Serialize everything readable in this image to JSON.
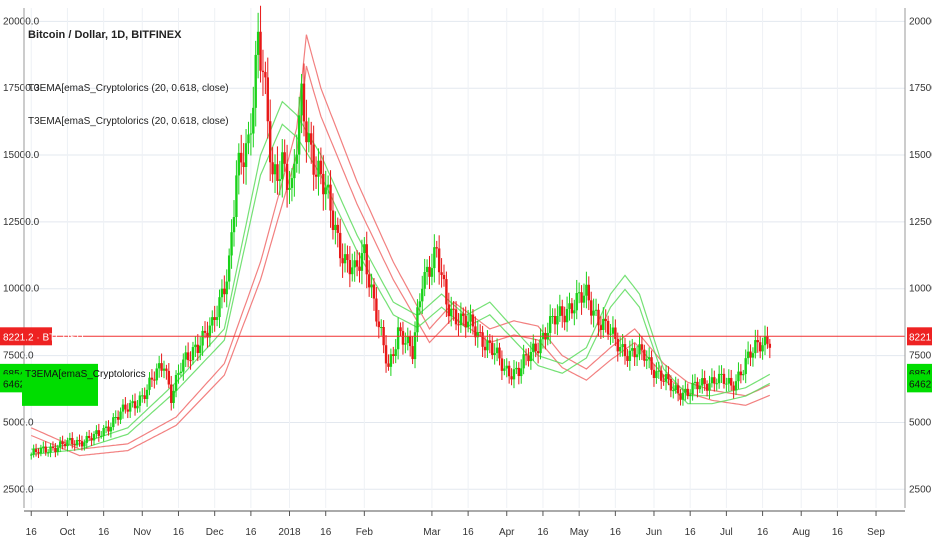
{
  "chart_data": {
    "type": "line",
    "title": "Bitcoin / Dollar, 1D, BITFINEX",
    "indicators": [
      {
        "name": "T3EMA[emaS_Cryptolorics (20, 0.618, close)",
        "color": "#22cc22"
      },
      {
        "name": "T3EMA[emaS_Cryptolorics (20, 0.618, close)",
        "color": "#ee3333"
      }
    ],
    "ylim": [
      1800,
      20500
    ],
    "y_ticks": [
      2500,
      5000,
      7500,
      10000,
      12500,
      15000,
      17500,
      20000
    ],
    "y_tick_labels": [
      "2500.0",
      "5000.0",
      "7500.0",
      "10000.0",
      "12500.0",
      "15000.0",
      "17500.0",
      "20000.0"
    ],
    "x_ticks": [
      "16",
      "Oct",
      "16",
      "Nov",
      "16",
      "Dec",
      "16",
      "2018",
      "16",
      "Feb",
      "Mar",
      "16",
      "Apr",
      "16",
      "May",
      "16",
      "Jun",
      "16",
      "Jul",
      "16",
      "Aug",
      "16",
      "Sep"
    ],
    "x_tick_days": [
      0,
      15,
      30,
      46,
      61,
      76,
      91,
      107,
      122,
      138,
      166,
      181,
      197,
      212,
      227,
      242,
      258,
      273,
      288,
      303,
      319,
      334,
      350
    ],
    "grid": true,
    "price_tags": [
      {
        "label": "8221.2",
        "symbol": "BTCUSD",
        "value": 8221.2,
        "color": "#ee2222"
      },
      {
        "label": "6854.0",
        "value": 6854.0,
        "color": "#00dd00"
      },
      {
        "label": "6462.0",
        "value": 6462.0,
        "color": "#00dd00"
      }
    ],
    "indicator_tag": "T3EMA[emaS_Cryptolorics",
    "candles_keypoints": [
      [
        0,
        3800
      ],
      [
        10,
        4100
      ],
      [
        20,
        4300
      ],
      [
        28,
        4500
      ],
      [
        35,
        5200
      ],
      [
        40,
        5500
      ],
      [
        48,
        6200
      ],
      [
        55,
        7300
      ],
      [
        58,
        6000
      ],
      [
        62,
        7000
      ],
      [
        68,
        7900
      ],
      [
        75,
        8500
      ],
      [
        82,
        11000
      ],
      [
        85,
        14000
      ],
      [
        90,
        15500
      ],
      [
        94,
        19500
      ],
      [
        96,
        18000
      ],
      [
        100,
        14000
      ],
      [
        104,
        15000
      ],
      [
        108,
        13500
      ],
      [
        112,
        17000
      ],
      [
        118,
        14500
      ],
      [
        124,
        13000
      ],
      [
        130,
        11000
      ],
      [
        134,
        10500
      ],
      [
        138,
        11500
      ],
      [
        144,
        8500
      ],
      [
        148,
        7000
      ],
      [
        152,
        8500
      ],
      [
        158,
        7500
      ],
      [
        162,
        10500
      ],
      [
        168,
        11200
      ],
      [
        172,
        9500
      ],
      [
        178,
        8800
      ],
      [
        184,
        8500
      ],
      [
        190,
        7800
      ],
      [
        196,
        7000
      ],
      [
        202,
        6900
      ],
      [
        210,
        8000
      ],
      [
        216,
        8700
      ],
      [
        222,
        9300
      ],
      [
        230,
        9700
      ],
      [
        236,
        8800
      ],
      [
        242,
        8000
      ],
      [
        248,
        7600
      ],
      [
        254,
        7500
      ],
      [
        260,
        6800
      ],
      [
        266,
        6200
      ],
      [
        272,
        6150
      ],
      [
        278,
        6400
      ],
      [
        284,
        6700
      ],
      [
        290,
        6300
      ],
      [
        296,
        7300
      ],
      [
        302,
        7900
      ],
      [
        306,
        8221
      ]
    ],
    "green_line": [
      [
        0,
        4000
      ],
      [
        20,
        4200
      ],
      [
        40,
        4800
      ],
      [
        60,
        6500
      ],
      [
        80,
        8500
      ],
      [
        95,
        15000
      ],
      [
        104,
        17000
      ],
      [
        110,
        16500
      ],
      [
        120,
        15000
      ],
      [
        135,
        12000
      ],
      [
        150,
        9500
      ],
      [
        160,
        9000
      ],
      [
        170,
        9800
      ],
      [
        180,
        9000
      ],
      [
        190,
        9500
      ],
      [
        200,
        8500
      ],
      [
        210,
        7500
      ],
      [
        220,
        7200
      ],
      [
        230,
        7800
      ],
      [
        240,
        9800
      ],
      [
        246,
        10500
      ],
      [
        252,
        9800
      ],
      [
        262,
        7000
      ],
      [
        272,
        6000
      ],
      [
        282,
        6000
      ],
      [
        296,
        6300
      ],
      [
        306,
        6800
      ]
    ],
    "red_line": [
      [
        0,
        4800
      ],
      [
        20,
        4000
      ],
      [
        40,
        4200
      ],
      [
        60,
        5200
      ],
      [
        80,
        7200
      ],
      [
        95,
        11000
      ],
      [
        110,
        16000
      ],
      [
        114,
        19500
      ],
      [
        120,
        17500
      ],
      [
        135,
        14000
      ],
      [
        150,
        11000
      ],
      [
        165,
        8500
      ],
      [
        175,
        9500
      ],
      [
        190,
        8500
      ],
      [
        200,
        8800
      ],
      [
        210,
        8600
      ],
      [
        220,
        7500
      ],
      [
        230,
        7000
      ],
      [
        240,
        7800
      ],
      [
        250,
        8500
      ],
      [
        262,
        7200
      ],
      [
        272,
        6500
      ],
      [
        282,
        6200
      ],
      [
        296,
        6000
      ],
      [
        306,
        6400
      ]
    ]
  }
}
